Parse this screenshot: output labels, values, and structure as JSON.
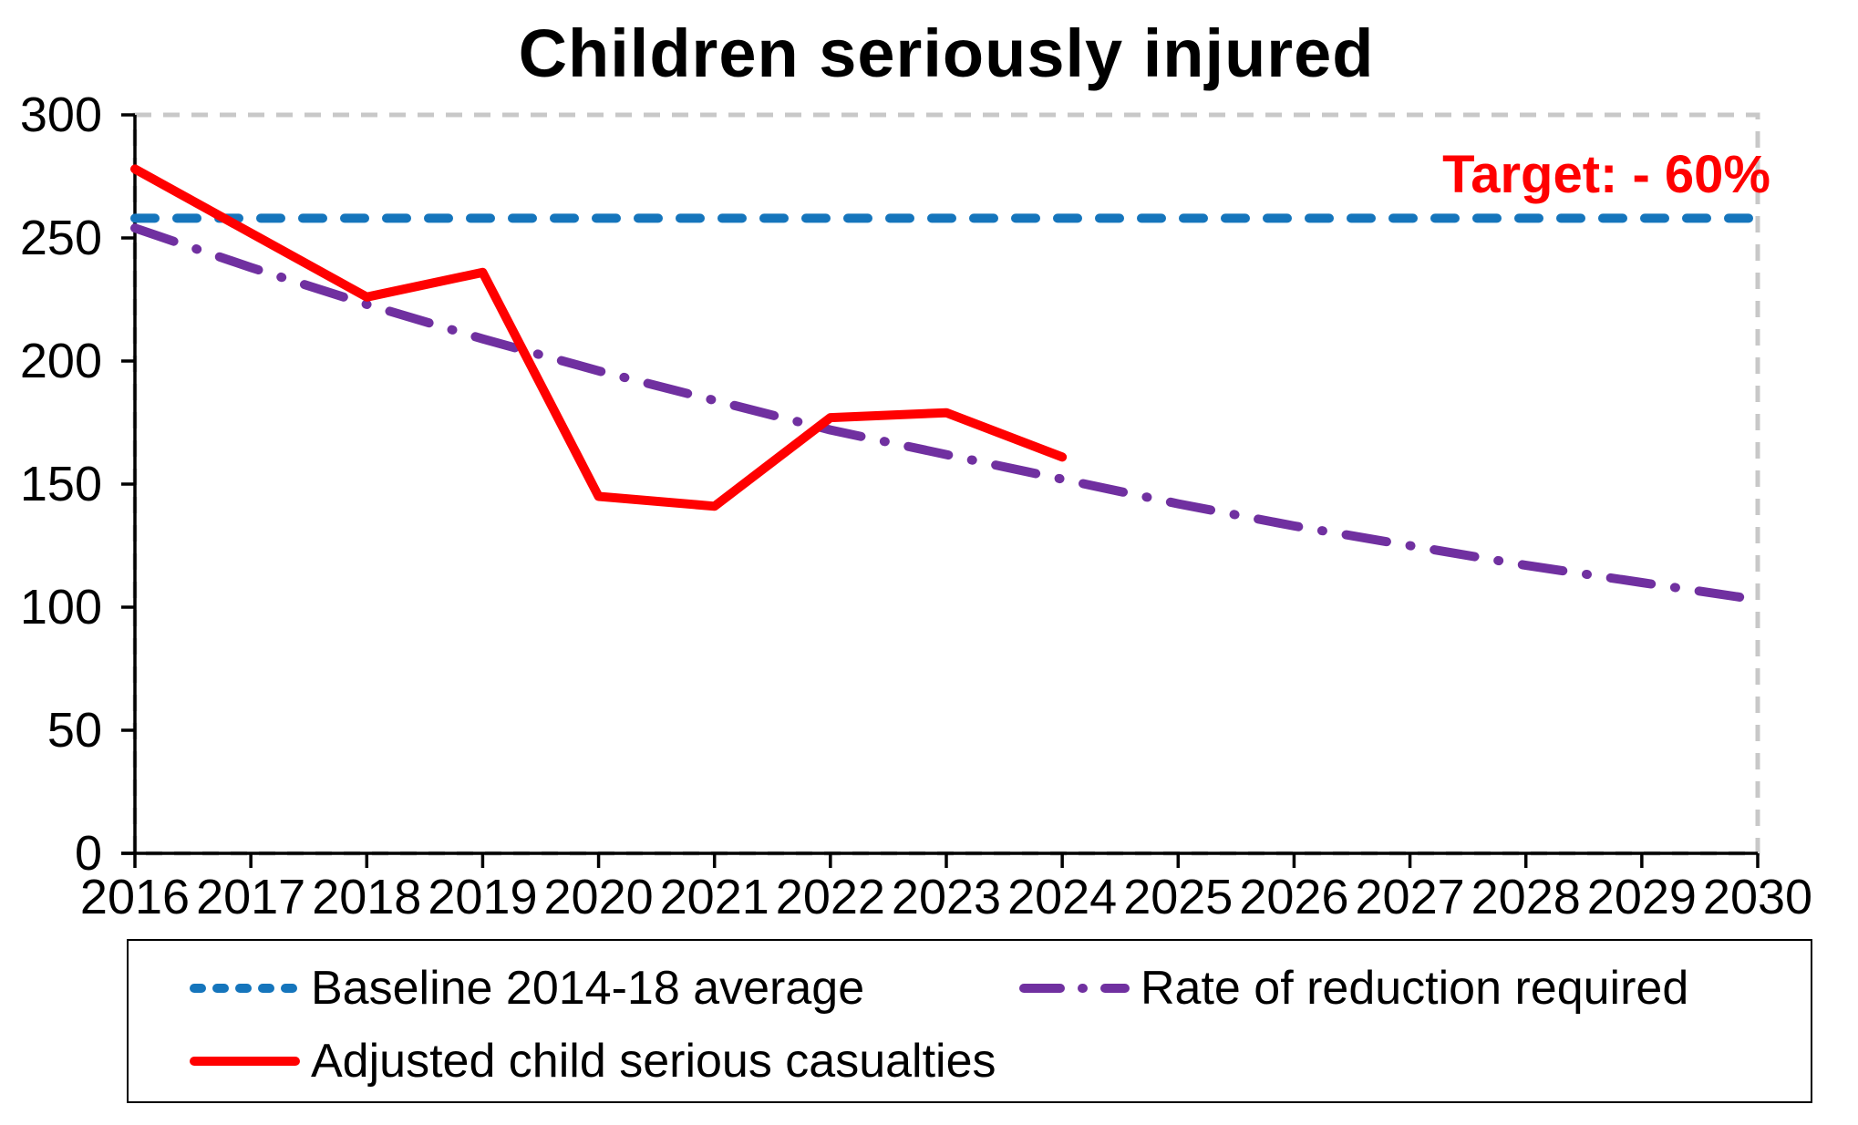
{
  "page": {
    "background": "#ffffff"
  },
  "chart_data": {
    "type": "line",
    "title": "Children seriously injured",
    "annotation": {
      "text": "Target: - 60%",
      "color": "#ff0000"
    },
    "x": [
      2016,
      2017,
      2018,
      2019,
      2020,
      2021,
      2022,
      2023,
      2024,
      2025,
      2026,
      2027,
      2028,
      2029,
      2030
    ],
    "xlabel": "",
    "ylabel": "",
    "ylim": [
      0,
      300
    ],
    "yticks": [
      0,
      50,
      100,
      150,
      200,
      250,
      300
    ],
    "grid": false,
    "plot_border_style": "dashed",
    "plot_border_color": "#c8c8c8",
    "axis_color": "#000000",
    "legend_position": "bottom-box",
    "series": [
      {
        "name": "Baseline 2014-18 average",
        "color": "#1575bc",
        "style": "dashed",
        "values": [
          258,
          258,
          258,
          258,
          258,
          258,
          258,
          258,
          258,
          258,
          258,
          258,
          258,
          258,
          258
        ]
      },
      {
        "name": "Rate of reduction required",
        "color": "#7030a0",
        "style": "dashdot",
        "values": [
          254,
          238,
          223,
          209,
          196,
          184,
          172,
          162,
          152,
          142,
          133,
          125,
          117,
          110,
          103
        ]
      },
      {
        "name": "Adjusted child serious casualties",
        "color": "#ff0000",
        "style": "solid",
        "values": [
          278,
          252,
          226,
          236,
          145,
          141,
          177,
          179,
          161,
          null,
          null,
          null,
          null,
          null,
          null
        ]
      }
    ]
  }
}
